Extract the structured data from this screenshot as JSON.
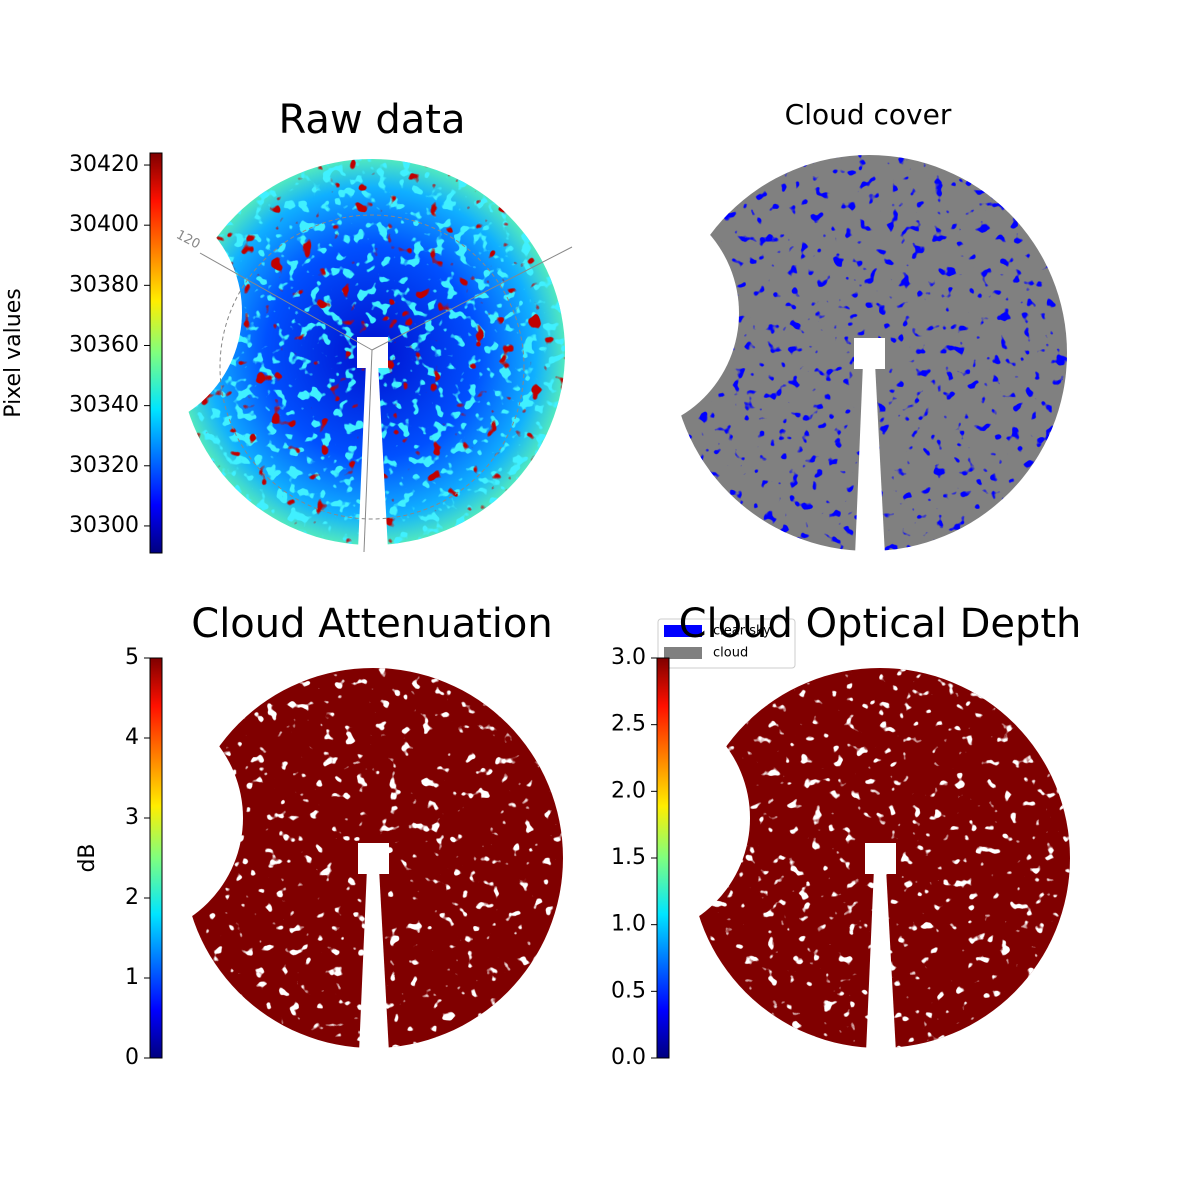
{
  "chart_data": [
    {
      "type": "image",
      "title": "Raw data",
      "annotations": [
        "120"
      ],
      "colorbar": {
        "label": "Pixel values",
        "colormap": "jet",
        "lim": [
          30291,
          30424
        ],
        "ticks": [
          30300,
          30320,
          30340,
          30360,
          30380,
          30400,
          30420
        ]
      }
    },
    {
      "type": "image",
      "title": "Cloud cover",
      "series": [
        {
          "name": "clear sky",
          "color": "#0000ff"
        },
        {
          "name": "cloud",
          "color": "#808080"
        }
      ]
    },
    {
      "type": "image",
      "title": "Cloud Attenuation",
      "colorbar": {
        "label": "dB",
        "colormap": "jet",
        "lim": [
          0,
          5
        ],
        "ticks": [
          0,
          1,
          2,
          3,
          4,
          5
        ]
      }
    },
    {
      "type": "image",
      "title": "Cloud Optical Depth",
      "colorbar": {
        "colormap": "jet",
        "lim": [
          0,
          3
        ],
        "ticks": [
          {
            "value": 0,
            "label": "0.0"
          },
          0.5,
          {
            "value": 1,
            "label": "1.0"
          },
          1.5,
          {
            "value": 2,
            "label": "2.0"
          },
          2.5,
          {
            "value": 3,
            "label": "3.0"
          }
        ]
      }
    }
  ]
}
